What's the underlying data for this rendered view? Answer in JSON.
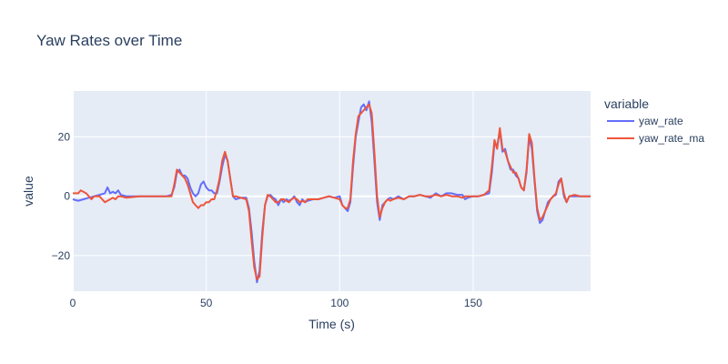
{
  "chart_data": {
    "type": "line",
    "title": "Yaw Rates over Time",
    "xlabel": "Time (s)",
    "ylabel": "value",
    "xlim": [
      0,
      194
    ],
    "ylim": [
      -32,
      35.5
    ],
    "x_ticks": [
      0,
      50,
      100,
      150
    ],
    "y_ticks": [
      -20,
      0,
      20
    ],
    "x_tick_labels": [
      "0",
      "50",
      "100",
      "150"
    ],
    "y_tick_labels": [
      "−20",
      "0",
      "20"
    ],
    "grid": true,
    "legend": {
      "title": "variable",
      "placement": "right"
    },
    "series": [
      {
        "name": "yaw_rate",
        "color": "#636efa",
        "points": [
          [
            0,
            -1
          ],
          [
            2,
            -1.5
          ],
          [
            4,
            -1
          ],
          [
            6,
            -0.5
          ],
          [
            8,
            0
          ],
          [
            10,
            0.5
          ],
          [
            12,
            1
          ],
          [
            13,
            3
          ],
          [
            14,
            1
          ],
          [
            15,
            1.5
          ],
          [
            16,
            1
          ],
          [
            17,
            2
          ],
          [
            18,
            0.5
          ],
          [
            20,
            0
          ],
          [
            25,
            0
          ],
          [
            30,
            0
          ],
          [
            35,
            0
          ],
          [
            37,
            0.5
          ],
          [
            38,
            3
          ],
          [
            39,
            8
          ],
          [
            40,
            9
          ],
          [
            41,
            7
          ],
          [
            42,
            7
          ],
          [
            43,
            6
          ],
          [
            44,
            3
          ],
          [
            45,
            1
          ],
          [
            46,
            0
          ],
          [
            47,
            1
          ],
          [
            48,
            4
          ],
          [
            49,
            5
          ],
          [
            50,
            3
          ],
          [
            51,
            2
          ],
          [
            52,
            2
          ],
          [
            53,
            1
          ],
          [
            54,
            1
          ],
          [
            55,
            5
          ],
          [
            56,
            10
          ],
          [
            57,
            14
          ],
          [
            58,
            12
          ],
          [
            59,
            6
          ],
          [
            60,
            0
          ],
          [
            61,
            -1
          ],
          [
            63,
            -0.5
          ],
          [
            65,
            -0.5
          ],
          [
            66,
            -4
          ],
          [
            67,
            -12
          ],
          [
            68,
            -22
          ],
          [
            69,
            -29
          ],
          [
            70,
            -25
          ],
          [
            71,
            -12
          ],
          [
            72,
            -3
          ],
          [
            73,
            0
          ],
          [
            74,
            0.5
          ],
          [
            75,
            -0.5
          ],
          [
            76,
            -1
          ],
          [
            77,
            -3
          ],
          [
            78,
            -1
          ],
          [
            79,
            -2
          ],
          [
            80,
            -1
          ],
          [
            81,
            -1.5
          ],
          [
            82,
            -1
          ],
          [
            83,
            0
          ],
          [
            84,
            -2
          ],
          [
            85,
            -3
          ],
          [
            86,
            -1
          ],
          [
            87,
            -2
          ],
          [
            88,
            -1.5
          ],
          [
            90,
            -1
          ],
          [
            92,
            -1
          ],
          [
            94,
            -0.5
          ],
          [
            96,
            0
          ],
          [
            98,
            -0.5
          ],
          [
            100,
            0
          ],
          [
            101,
            -3
          ],
          [
            102,
            -4
          ],
          [
            103,
            -5
          ],
          [
            104,
            -2
          ],
          [
            105,
            10
          ],
          [
            106,
            20
          ],
          [
            107,
            25
          ],
          [
            108,
            30
          ],
          [
            109,
            31
          ],
          [
            110,
            29
          ],
          [
            111,
            32
          ],
          [
            112,
            25
          ],
          [
            113,
            12
          ],
          [
            114,
            -2
          ],
          [
            115,
            -8
          ],
          [
            116,
            -3
          ],
          [
            117,
            -2
          ],
          [
            118,
            -1
          ],
          [
            119,
            -0.5
          ],
          [
            120,
            -1
          ],
          [
            122,
            0
          ],
          [
            124,
            -1
          ],
          [
            126,
            0
          ],
          [
            128,
            0
          ],
          [
            130,
            0.5
          ],
          [
            132,
            0
          ],
          [
            134,
            -0.5
          ],
          [
            136,
            1
          ],
          [
            138,
            0
          ],
          [
            140,
            1
          ],
          [
            142,
            1
          ],
          [
            144,
            0.5
          ],
          [
            146,
            0.5
          ],
          [
            147,
            -1
          ],
          [
            148,
            -0.5
          ],
          [
            150,
            0
          ],
          [
            152,
            0
          ],
          [
            154,
            0.5
          ],
          [
            156,
            1
          ],
          [
            157,
            8
          ],
          [
            158,
            18
          ],
          [
            159,
            17
          ],
          [
            160,
            22
          ],
          [
            161,
            15
          ],
          [
            162,
            16
          ],
          [
            163,
            12
          ],
          [
            164,
            9
          ],
          [
            165,
            9
          ],
          [
            166,
            7
          ],
          [
            167,
            6
          ],
          [
            168,
            3
          ],
          [
            169,
            2
          ],
          [
            170,
            8
          ],
          [
            171,
            20
          ],
          [
            172,
            16
          ],
          [
            173,
            5
          ],
          [
            174,
            -5
          ],
          [
            175,
            -9
          ],
          [
            176,
            -8
          ],
          [
            177,
            -5
          ],
          [
            178,
            -2
          ],
          [
            179,
            -1
          ],
          [
            180,
            0
          ],
          [
            181,
            0.5
          ],
          [
            182,
            5
          ],
          [
            183,
            6
          ],
          [
            184,
            0
          ],
          [
            185,
            -2
          ],
          [
            186,
            0
          ],
          [
            188,
            0
          ],
          [
            190,
            0
          ],
          [
            192,
            0
          ],
          [
            194,
            0
          ]
        ]
      },
      {
        "name": "yaw_rate_ma",
        "color": "#ef553b",
        "points": [
          [
            0,
            1
          ],
          [
            2,
            1
          ],
          [
            3,
            2
          ],
          [
            4,
            1.5
          ],
          [
            5,
            1
          ],
          [
            6,
            0
          ],
          [
            7,
            -1
          ],
          [
            8,
            0
          ],
          [
            10,
            0
          ],
          [
            11,
            -1
          ],
          [
            12,
            -2
          ],
          [
            13,
            -1.5
          ],
          [
            14,
            -1
          ],
          [
            15,
            -0.5
          ],
          [
            16,
            -1
          ],
          [
            17,
            0
          ],
          [
            18,
            0
          ],
          [
            20,
            -0.5
          ],
          [
            25,
            0
          ],
          [
            30,
            0
          ],
          [
            35,
            0
          ],
          [
            37,
            0
          ],
          [
            38,
            4
          ],
          [
            39,
            9
          ],
          [
            40,
            8
          ],
          [
            41,
            7
          ],
          [
            42,
            6
          ],
          [
            43,
            4
          ],
          [
            44,
            1
          ],
          [
            45,
            -2
          ],
          [
            46,
            -3
          ],
          [
            47,
            -4
          ],
          [
            48,
            -3
          ],
          [
            49,
            -3
          ],
          [
            50,
            -2
          ],
          [
            51,
            -2
          ],
          [
            52,
            -1
          ],
          [
            53,
            -1
          ],
          [
            54,
            2
          ],
          [
            55,
            6
          ],
          [
            56,
            12
          ],
          [
            57,
            15
          ],
          [
            58,
            12
          ],
          [
            59,
            6
          ],
          [
            60,
            0
          ],
          [
            61,
            0
          ],
          [
            63,
            -0.5
          ],
          [
            65,
            -1
          ],
          [
            66,
            -5
          ],
          [
            67,
            -15
          ],
          [
            68,
            -24
          ],
          [
            69,
            -28
          ],
          [
            70,
            -27
          ],
          [
            71,
            -14
          ],
          [
            72,
            -3
          ],
          [
            73,
            0.5
          ],
          [
            74,
            0
          ],
          [
            75,
            -1
          ],
          [
            76,
            -2
          ],
          [
            77,
            -2
          ],
          [
            78,
            -1
          ],
          [
            79,
            -1
          ],
          [
            80,
            -1.5
          ],
          [
            81,
            -2
          ],
          [
            82,
            -1
          ],
          [
            83,
            -0.5
          ],
          [
            84,
            -1
          ],
          [
            85,
            -2
          ],
          [
            86,
            -1.5
          ],
          [
            87,
            -2
          ],
          [
            88,
            -1
          ],
          [
            90,
            -1
          ],
          [
            92,
            -1
          ],
          [
            94,
            -0.5
          ],
          [
            96,
            0
          ],
          [
            98,
            -0.5
          ],
          [
            100,
            -1
          ],
          [
            101,
            -3
          ],
          [
            102,
            -4
          ],
          [
            103,
            -4
          ],
          [
            104,
            -1
          ],
          [
            105,
            12
          ],
          [
            106,
            21
          ],
          [
            107,
            27
          ],
          [
            108,
            28
          ],
          [
            109,
            29
          ],
          [
            110,
            30
          ],
          [
            111,
            31
          ],
          [
            112,
            28
          ],
          [
            113,
            15
          ],
          [
            114,
            0
          ],
          [
            115,
            -7
          ],
          [
            116,
            -4
          ],
          [
            117,
            -2
          ],
          [
            118,
            -1
          ],
          [
            119,
            -1.5
          ],
          [
            120,
            -1
          ],
          [
            122,
            -0.5
          ],
          [
            124,
            -1
          ],
          [
            126,
            0
          ],
          [
            128,
            0
          ],
          [
            130,
            0.5
          ],
          [
            132,
            0
          ],
          [
            134,
            0
          ],
          [
            136,
            0.5
          ],
          [
            138,
            0
          ],
          [
            140,
            0.5
          ],
          [
            142,
            0
          ],
          [
            144,
            0
          ],
          [
            146,
            -0.5
          ],
          [
            147,
            0
          ],
          [
            148,
            0
          ],
          [
            150,
            0
          ],
          [
            152,
            0
          ],
          [
            154,
            0.5
          ],
          [
            156,
            2
          ],
          [
            157,
            10
          ],
          [
            158,
            19
          ],
          [
            159,
            16
          ],
          [
            160,
            23
          ],
          [
            161,
            16
          ],
          [
            162,
            15
          ],
          [
            163,
            12
          ],
          [
            164,
            10
          ],
          [
            165,
            8
          ],
          [
            166,
            8
          ],
          [
            167,
            6
          ],
          [
            168,
            3
          ],
          [
            169,
            2
          ],
          [
            170,
            9
          ],
          [
            171,
            21
          ],
          [
            172,
            18
          ],
          [
            173,
            6
          ],
          [
            174,
            -4
          ],
          [
            175,
            -8
          ],
          [
            176,
            -7
          ],
          [
            177,
            -5
          ],
          [
            178,
            -3
          ],
          [
            179,
            -1
          ],
          [
            180,
            0
          ],
          [
            181,
            1
          ],
          [
            182,
            4
          ],
          [
            183,
            6
          ],
          [
            184,
            1
          ],
          [
            185,
            -2
          ],
          [
            186,
            0
          ],
          [
            188,
            0.5
          ],
          [
            190,
            0
          ],
          [
            192,
            0
          ],
          [
            194,
            0
          ]
        ]
      }
    ]
  }
}
